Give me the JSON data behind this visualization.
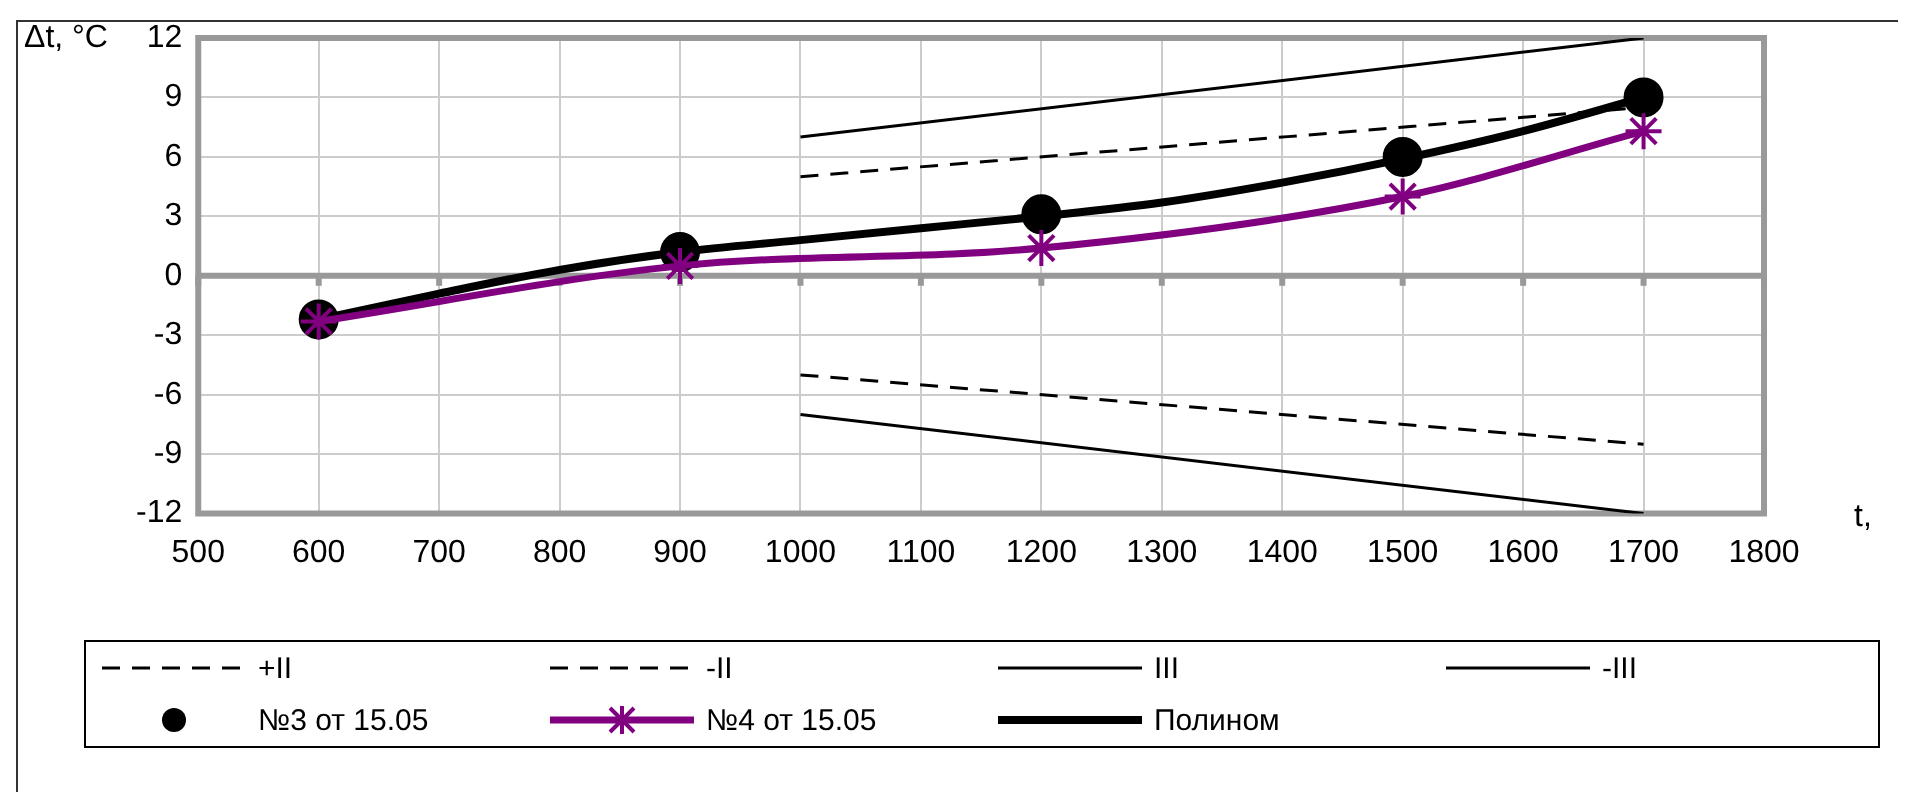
{
  "chart_data": {
    "type": "line",
    "xlabel": "t,",
    "ylabel": "Δt, °C",
    "xlim": [
      500,
      1800
    ],
    "xticks": [
      500,
      600,
      700,
      800,
      900,
      1000,
      1100,
      1200,
      1300,
      1400,
      1500,
      1600,
      1700,
      1800
    ],
    "ylim": [
      -12,
      12
    ],
    "yticks": [
      -12,
      -9,
      -6,
      -3,
      0,
      3,
      6,
      9,
      12
    ],
    "grid": true,
    "legend": "bottom",
    "series": [
      {
        "name": "+II",
        "type": "line",
        "color": "#000000",
        "line_style": "dashed",
        "marker": "none",
        "x": [
          1000,
          1700
        ],
        "values": [
          5,
          8.5
        ]
      },
      {
        "name": "-II",
        "type": "line",
        "color": "#000000",
        "line_style": "dashed",
        "marker": "none",
        "x": [
          1000,
          1700
        ],
        "values": [
          -5,
          -8.5
        ]
      },
      {
        "name": "III",
        "type": "line",
        "color": "#000000",
        "line_style": "solid",
        "marker": "none",
        "x": [
          1000,
          1700
        ],
        "values": [
          7,
          12
        ]
      },
      {
        "name": "-III",
        "type": "line",
        "color": "#000000",
        "line_style": "solid",
        "marker": "none",
        "x": [
          1000,
          1700
        ],
        "values": [
          -7,
          -12
        ]
      },
      {
        "name": "№3 от 15.05",
        "type": "scatter",
        "color": "#000000",
        "marker": "circle",
        "x": [
          600,
          900,
          1200,
          1500,
          1700
        ],
        "values": [
          -2.2,
          1.2,
          3.1,
          6.0,
          9.0
        ]
      },
      {
        "name": "№4 от 15.05",
        "type": "line",
        "color": "#800080",
        "line_style": "solid",
        "marker": "cross",
        "x": [
          600,
          900,
          1200,
          1500,
          1700
        ],
        "values": [
          -2.3,
          0.5,
          1.4,
          4.0,
          7.3
        ]
      },
      {
        "name": "Полином",
        "type": "line",
        "color": "#000000",
        "line_style": "solid",
        "marker": "none",
        "x": [
          600,
          700,
          800,
          900,
          1000,
          1100,
          1200,
          1300,
          1400,
          1500,
          1600,
          1700
        ],
        "values": [
          -2.2,
          -0.9,
          0.3,
          1.2,
          1.8,
          2.4,
          3.0,
          3.7,
          4.7,
          5.9,
          7.3,
          9.0
        ]
      }
    ]
  }
}
